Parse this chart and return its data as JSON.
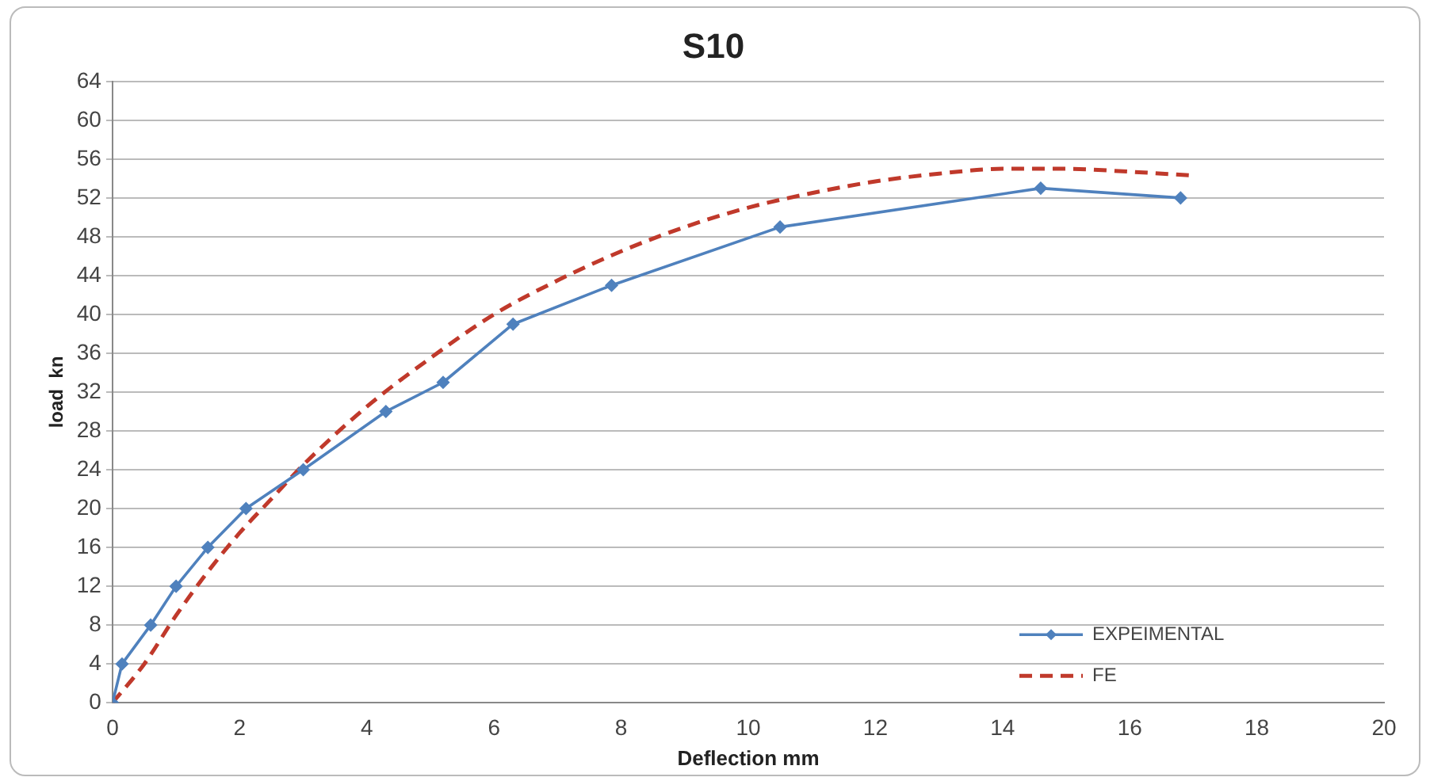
{
  "chart_data": {
    "type": "line",
    "title": "S10",
    "xlabel": "Deflection mm",
    "ylabel": "load  kn",
    "xlim": [
      0,
      20
    ],
    "xticks": [
      0,
      2,
      4,
      6,
      8,
      10,
      12,
      14,
      16,
      18,
      20
    ],
    "ylim": [
      0,
      64
    ],
    "yticks": [
      0,
      4,
      8,
      12,
      16,
      20,
      24,
      28,
      32,
      36,
      40,
      44,
      48,
      52,
      56,
      60,
      64
    ],
    "grid": "y",
    "legend": "bottom right",
    "series": [
      {
        "name": "EXPEIMENTAL",
        "color": "#4f81bd",
        "marker": "diamond",
        "line_style": "solid",
        "x": [
          0,
          0.15,
          0.6,
          1.0,
          1.5,
          2.1,
          3.0,
          4.3,
          5.2,
          6.3,
          7.85,
          10.5,
          14.6,
          16.8
        ],
        "values": [
          0,
          4,
          8,
          12,
          16,
          20,
          24,
          30,
          33,
          39,
          43,
          49,
          53,
          52
        ]
      },
      {
        "name": "FE",
        "color": "#c0392b",
        "marker": "none",
        "line_style": "dashed",
        "x": [
          0,
          0.5,
          1,
          1.5,
          2,
          2.5,
          3,
          4,
          5,
          6,
          7,
          8,
          9,
          10,
          11,
          12,
          13,
          14,
          15,
          16,
          17
        ],
        "values": [
          0,
          4,
          9,
          13.5,
          17.5,
          21,
          24.5,
          30.5,
          35.5,
          40,
          43.5,
          46.5,
          49,
          51,
          52.5,
          53.7,
          54.5,
          55,
          55,
          54.7,
          54.3
        ]
      }
    ]
  }
}
